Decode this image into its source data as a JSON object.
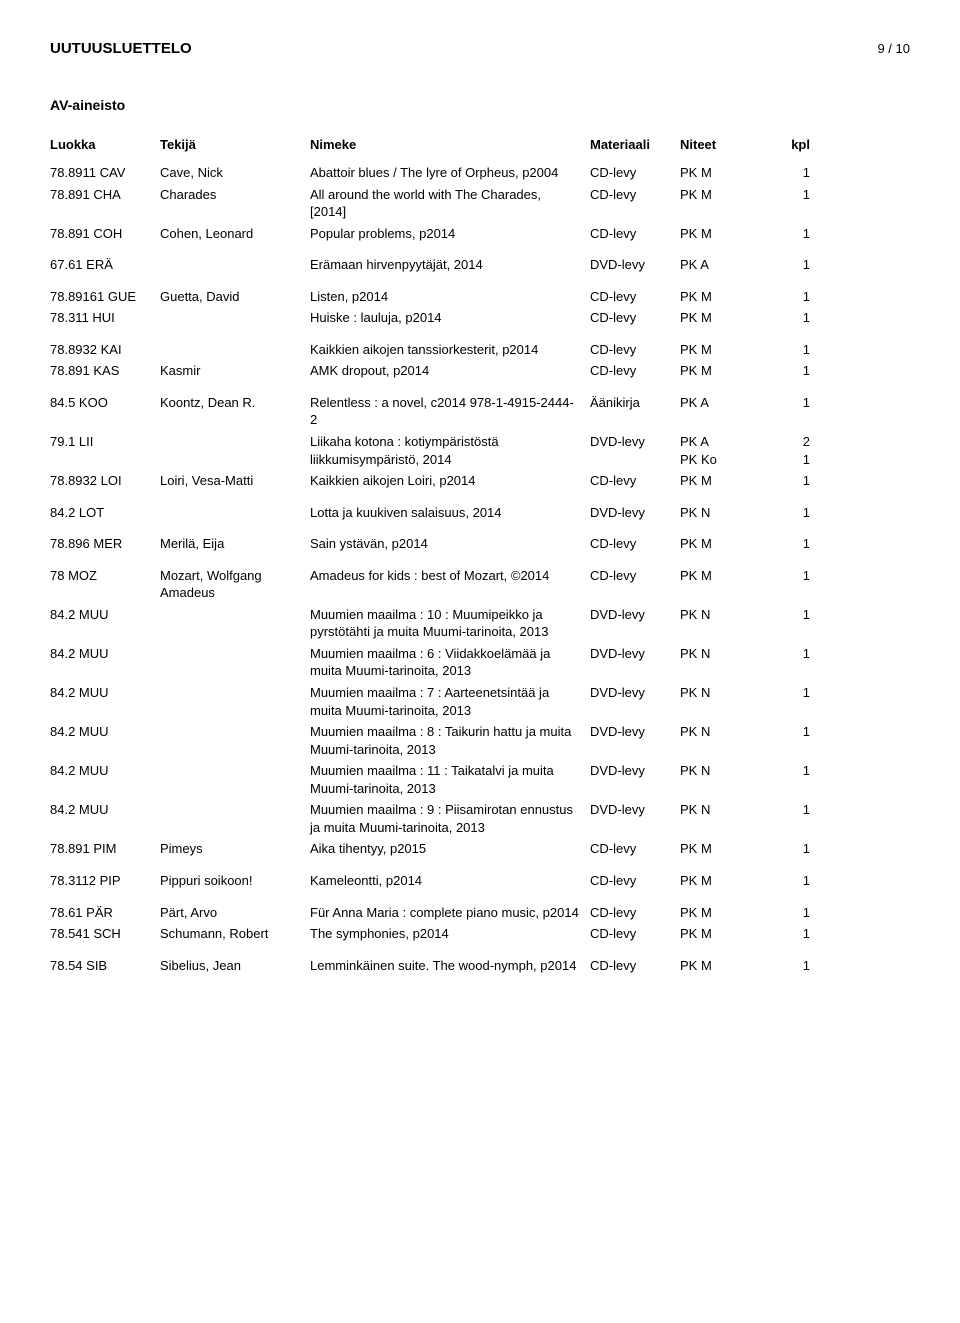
{
  "header": {
    "title": "UUTUUSLUETTELO",
    "page": "9 / 10"
  },
  "section_title": "AV-aineisto",
  "columns": {
    "luokka": "Luokka",
    "tekija": "Tekijä",
    "nimeke": "Nimeke",
    "materiaali": "Materiaali",
    "niteet": "Niteet",
    "kpl": "kpl"
  },
  "rows": [
    {
      "luokka": "78.8911 CAV",
      "tekija": "Cave, Nick",
      "nimeke": "Abattoir blues / The lyre of Orpheus, p2004",
      "mat": "CD-levy",
      "niteet": "PK M",
      "kpl": "1",
      "gap": false
    },
    {
      "luokka": "78.891 CHA",
      "tekija": "Charades",
      "nimeke": "All around the world with The Charades, [2014]",
      "mat": "CD-levy",
      "niteet": "PK M",
      "kpl": "1",
      "gap": false
    },
    {
      "luokka": "78.891 COH",
      "tekija": "Cohen, Leonard",
      "nimeke": "Popular problems, p2014",
      "mat": "CD-levy",
      "niteet": "PK M",
      "kpl": "1",
      "gap": true
    },
    {
      "luokka": "67.61 ERÄ",
      "tekija": "",
      "nimeke": "Erämaan hirvenpyytäjät, 2014",
      "mat": "DVD-levy",
      "niteet": "PK A",
      "kpl": "1",
      "gap": true
    },
    {
      "luokka": "78.89161 GUE",
      "tekija": "Guetta, David",
      "nimeke": "Listen, p2014",
      "mat": "CD-levy",
      "niteet": "PK M",
      "kpl": "1",
      "gap": false
    },
    {
      "luokka": "78.311 HUI",
      "tekija": "",
      "nimeke": "Huiske : lauluja, p2014",
      "mat": "CD-levy",
      "niteet": "PK M",
      "kpl": "1",
      "gap": true
    },
    {
      "luokka": "78.8932 KAI",
      "tekija": "",
      "nimeke": "Kaikkien aikojen tanssiorkesterit, p2014",
      "mat": "CD-levy",
      "niteet": "PK M",
      "kpl": "1",
      "gap": false
    },
    {
      "luokka": "78.891 KAS",
      "tekija": "Kasmir",
      "nimeke": "AMK dropout, p2014",
      "mat": "CD-levy",
      "niteet": "PK M",
      "kpl": "1",
      "gap": true
    },
    {
      "luokka": "84.5 KOO",
      "tekija": "Koontz, Dean R.",
      "nimeke": "Relentless : a novel, c2014 978-1-4915-2444-2",
      "mat": "Äänikirja",
      "niteet": "PK A",
      "kpl": "1",
      "gap": false
    },
    {
      "luokka": "79.1 LII",
      "tekija": "",
      "nimeke": "Liikaha kotona : kotiympäristöstä liikkumisympäristö, 2014",
      "mat": "DVD-levy",
      "niteet": "PK A\nPK Ko",
      "kpl": "2\n1",
      "gap": false
    },
    {
      "luokka": "78.8932 LOI",
      "tekija": "Loiri, Vesa-Matti",
      "nimeke": "Kaikkien aikojen Loiri, p2014",
      "mat": "CD-levy",
      "niteet": "PK M",
      "kpl": "1",
      "gap": true
    },
    {
      "luokka": "84.2 LOT",
      "tekija": "",
      "nimeke": "Lotta ja kuukiven salaisuus, 2014",
      "mat": "DVD-levy",
      "niteet": "PK N",
      "kpl": "1",
      "gap": true
    },
    {
      "luokka": "78.896 MER",
      "tekija": "Merilä, Eija",
      "nimeke": "Sain ystävän, p2014",
      "mat": "CD-levy",
      "niteet": "PK M",
      "kpl": "1",
      "gap": true
    },
    {
      "luokka": "78 MOZ",
      "tekija": "Mozart, Wolfgang Amadeus",
      "nimeke": "Amadeus for kids : best of Mozart, ©2014",
      "mat": "CD-levy",
      "niteet": "PK M",
      "kpl": "1",
      "gap": false
    },
    {
      "luokka": "84.2 MUU",
      "tekija": "",
      "nimeke": "Muumien maailma : 10 : Muumipeikko ja pyrstötähti ja muita Muumi-tarinoita, 2013",
      "mat": "DVD-levy",
      "niteet": "PK N",
      "kpl": "1",
      "gap": false
    },
    {
      "luokka": "84.2 MUU",
      "tekija": "",
      "nimeke": "Muumien maailma : 6 : Viidakkoelämää ja muita Muumi-tarinoita, 2013",
      "mat": "DVD-levy",
      "niteet": "PK N",
      "kpl": "1",
      "gap": false
    },
    {
      "luokka": "84.2 MUU",
      "tekija": "",
      "nimeke": "Muumien maailma : 7 : Aarteenetsintää ja muita Muumi-tarinoita, 2013",
      "mat": "DVD-levy",
      "niteet": "PK N",
      "kpl": "1",
      "gap": false
    },
    {
      "luokka": "84.2 MUU",
      "tekija": "",
      "nimeke": "Muumien maailma : 8 : Taikurin hattu ja muita Muumi-tarinoita, 2013",
      "mat": "DVD-levy",
      "niteet": "PK N",
      "kpl": "1",
      "gap": false
    },
    {
      "luokka": "84.2 MUU",
      "tekija": "",
      "nimeke": "Muumien maailma : 11 : Taikatalvi ja muita Muumi-tarinoita, 2013",
      "mat": "DVD-levy",
      "niteet": "PK N",
      "kpl": "1",
      "gap": false
    },
    {
      "luokka": "84.2 MUU",
      "tekija": "",
      "nimeke": "Muumien maailma : 9 : Piisamirotan ennustus ja muita Muumi-tarinoita, 2013",
      "mat": "DVD-levy",
      "niteet": "PK N",
      "kpl": "1",
      "gap": false
    },
    {
      "luokka": "78.891 PIM",
      "tekija": "Pimeys",
      "nimeke": "Aika tihentyy, p2015",
      "mat": "CD-levy",
      "niteet": "PK M",
      "kpl": "1",
      "gap": true
    },
    {
      "luokka": "78.3112 PIP",
      "tekija": "Pippuri soikoon!",
      "nimeke": "Kameleontti, p2014",
      "mat": "CD-levy",
      "niteet": "PK M",
      "kpl": "1",
      "gap": true
    },
    {
      "luokka": "78.61 PÄR",
      "tekija": "Pärt, Arvo",
      "nimeke": "Für Anna Maria : complete piano music, p2014",
      "mat": "CD-levy",
      "niteet": "PK M",
      "kpl": "1",
      "gap": false
    },
    {
      "luokka": "78.541 SCH",
      "tekija": "Schumann, Robert",
      "nimeke": "The symphonies, p2014",
      "mat": "CD-levy",
      "niteet": "PK M",
      "kpl": "1",
      "gap": true
    },
    {
      "luokka": "78.54 SIB",
      "tekija": "Sibelius, Jean",
      "nimeke": "Lemminkäinen suite. The wood-nymph, p2014",
      "mat": "CD-levy",
      "niteet": "PK M",
      "kpl": "1",
      "gap": false
    }
  ]
}
